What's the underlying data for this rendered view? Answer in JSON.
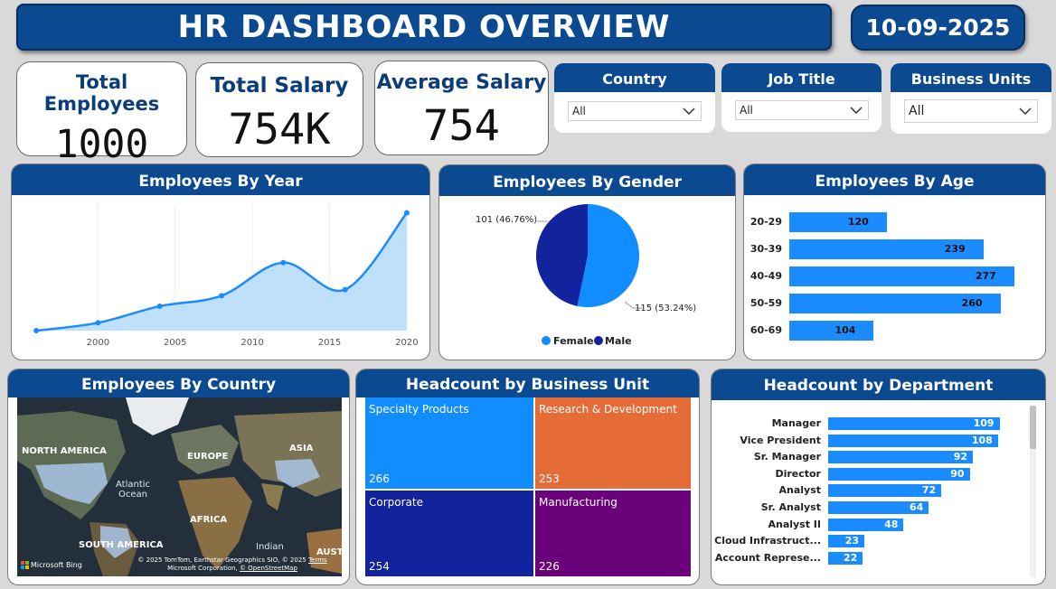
{
  "header": {
    "title": "HR DASHBOARD OVERVIEW",
    "date": "10-09-2025"
  },
  "kpis": {
    "total_employees": {
      "label": "Total Employees",
      "value": "1000"
    },
    "total_salary": {
      "label": "Total Salary",
      "value": "754K"
    },
    "average_salary": {
      "label": "Average Salary",
      "value": "754"
    }
  },
  "slicers": {
    "country": {
      "label": "Country",
      "value": "All"
    },
    "job_title": {
      "label": "Job Title",
      "value": "All"
    },
    "business_units": {
      "label": "Business Units",
      "value": "All"
    }
  },
  "by_year": {
    "title": "Employees By Year",
    "ticks": [
      "2000",
      "2005",
      "2010",
      "2015",
      "2020"
    ]
  },
  "by_gender": {
    "title": "Employees By Gender",
    "female_label": "115 (53.24%)",
    "male_label": "101 (46.76%)",
    "legend_female": "Female",
    "legend_male": "Male"
  },
  "by_age": {
    "title": "Employees By Age",
    "rows": [
      {
        "label": "20-29",
        "value": "120"
      },
      {
        "label": "30-39",
        "value": "239"
      },
      {
        "label": "40-49",
        "value": "277"
      },
      {
        "label": "50-59",
        "value": "260"
      },
      {
        "label": "60-69",
        "value": "104"
      }
    ]
  },
  "by_country": {
    "title": "Employees By Country",
    "labels": {
      "north_america": "NORTH AMERICA",
      "europe": "EUROPE",
      "asia": "ASIA",
      "africa": "AFRICA",
      "south_america": "SOUTH AMERICA",
      "atlantic": "Atlantic\nOcean",
      "indian": "Indian",
      "aust": "AUST"
    },
    "bing": "Microsoft Bing",
    "copyright_1": "© 2025 TomTom, Earthstar Geographics SIO, © 2025",
    "terms": "Terms",
    "copyright_2": "Microsoft Corporation,",
    "osm": "© OpenStreetMap"
  },
  "by_business_unit": {
    "title": "Headcount by Business Unit",
    "cells": [
      {
        "name": "Specialty Products",
        "count": "266",
        "color": "#118dff"
      },
      {
        "name": "Research & Development",
        "count": "253",
        "color": "#e66c37"
      },
      {
        "name": "Corporate",
        "count": "254",
        "color": "#12239e"
      },
      {
        "name": "Manufacturing",
        "count": "226",
        "color": "#6b007b"
      }
    ]
  },
  "by_department": {
    "title": "Headcount by Department",
    "rows": [
      {
        "label": "Manager",
        "value": "109"
      },
      {
        "label": "Vice President",
        "value": "108"
      },
      {
        "label": "Sr. Manager",
        "value": "92"
      },
      {
        "label": "Director",
        "value": "90"
      },
      {
        "label": "Analyst",
        "value": "72"
      },
      {
        "label": "Sr. Analyst",
        "value": "64"
      },
      {
        "label": "Analyst II",
        "value": "48"
      },
      {
        "label": "Cloud Infrastruct...",
        "value": "23"
      },
      {
        "label": "Account Represe...",
        "value": "22"
      }
    ]
  },
  "chart_data": [
    {
      "type": "area",
      "title": "Employees By Year",
      "x": [
        1996,
        2000,
        2004,
        2008,
        2012,
        2016,
        2020
      ],
      "y": [
        0,
        9,
        28,
        40,
        78,
        47,
        135
      ],
      "xticks": [
        2000,
        2005,
        2010,
        2015,
        2020
      ]
    },
    {
      "type": "pie",
      "title": "Employees By Gender",
      "labels": [
        "Female",
        "Male"
      ],
      "values": [
        115,
        101
      ],
      "colors": [
        "#118dff",
        "#12239e"
      ]
    },
    {
      "type": "bar",
      "title": "Employees By Age",
      "categories": [
        "20-29",
        "30-39",
        "40-49",
        "50-59",
        "60-69"
      ],
      "values": [
        120,
        239,
        277,
        260,
        104
      ]
    },
    {
      "type": "bar",
      "title": "Headcount by Department",
      "categories": [
        "Manager",
        "Vice President",
        "Sr. Manager",
        "Director",
        "Analyst",
        "Sr. Analyst",
        "Analyst II",
        "Cloud Infrastruct...",
        "Account Represe..."
      ],
      "values": [
        109,
        108,
        92,
        90,
        72,
        64,
        48,
        23,
        22
      ]
    }
  ]
}
